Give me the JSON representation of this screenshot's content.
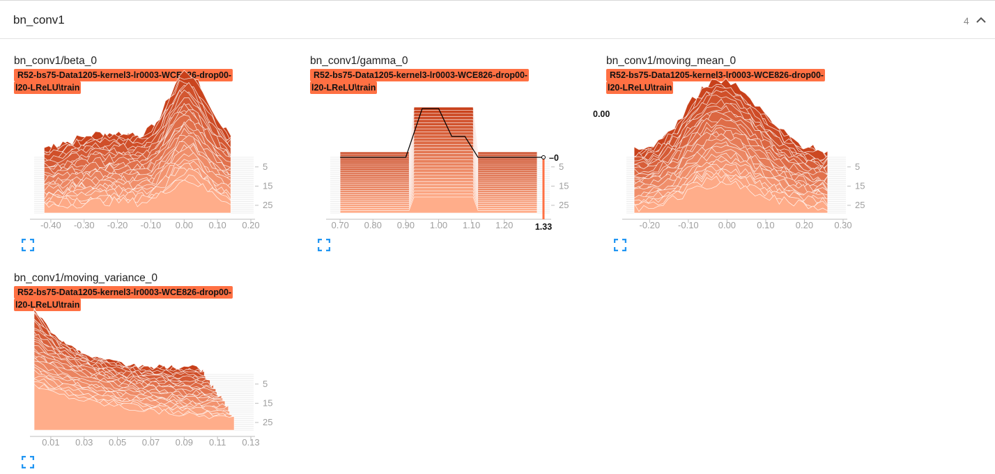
{
  "section": {
    "title": "bn_conv1",
    "count": "4"
  },
  "icons": {
    "collapse": "chevron-up-icon",
    "expand": "fullscreen-icon"
  },
  "colors": {
    "run": "#ff7043",
    "hist_dark": "#c8401a",
    "hist_light": "#ffad8a"
  },
  "chart_data": [
    {
      "type": "area",
      "title": "bn_conv1/beta_0",
      "run": [
        "R52-bs75-Data1205-kernel3-lr0003-WCE826-drop00-",
        "l20-LReLU\\train"
      ],
      "xlim": [
        -0.45,
        0.2
      ],
      "x_ticks": [
        "-0.40",
        "-0.30",
        "-0.20",
        "-0.10",
        "0.00",
        "0.10",
        "0.20"
      ],
      "y_ticks": [
        "5",
        "15",
        "25"
      ],
      "steps": 30,
      "shape": {
        "centers": [
          -0.22,
          0.0,
          0.06
        ],
        "widths": [
          0.12,
          0.05,
          0.08
        ],
        "amps": [
          0.35,
          1.0,
          0.5
        ],
        "left": -0.42,
        "right": 0.14
      }
    },
    {
      "type": "area",
      "title": "bn_conv1/gamma_0",
      "run": [
        "R52-bs75-Data1205-kernel3-lr0003-WCE826-drop00-",
        "l20-LReLU\\train"
      ],
      "xlim": [
        0.67,
        1.33
      ],
      "x_ticks": [
        "0.70",
        "0.80",
        "0.90",
        "1.00",
        "1.10",
        "1.20"
      ],
      "y_ticks": [
        "5",
        "15",
        "25"
      ],
      "steps": 30,
      "hover": {
        "x": "1.33",
        "step": "0"
      },
      "shape": {
        "plateau": [
          0.92,
          1.12
        ],
        "left": 0.7,
        "right": 1.3
      }
    },
    {
      "type": "area",
      "title": "bn_conv1/moving_mean_0",
      "run": [
        "R52-bs75-Data1205-kernel3-lr0003-WCE826-drop00-",
        "l20-LReLU\\train"
      ],
      "xlim": [
        -0.26,
        0.3
      ],
      "x_ticks": [
        "-0.20",
        "-0.10",
        "0.00",
        "0.10",
        "0.20",
        "0.30"
      ],
      "y_ticks": [
        "5",
        "15",
        "25"
      ],
      "steps": 30,
      "value_label": "0.00",
      "shape": {
        "centers": [
          -0.05,
          0.05
        ],
        "widths": [
          0.07,
          0.08
        ],
        "amps": [
          0.9,
          0.7
        ],
        "left": -0.24,
        "right": 0.26
      }
    },
    {
      "type": "area",
      "title": "bn_conv1/moving_variance_0",
      "run": [
        "R52-bs75-Data1205-kernel3-lr0003-WCE826-drop00-",
        "l20-LReLU\\train"
      ],
      "xlim": [
        0.0,
        0.13
      ],
      "x_ticks": [
        "0.01",
        "0.03",
        "0.05",
        "0.07",
        "0.09",
        "0.11",
        "0.13"
      ],
      "y_ticks": [
        "5",
        "15",
        "25"
      ],
      "steps": 30,
      "shape": {
        "decay": true,
        "left": 0.0,
        "right": 0.12
      }
    }
  ]
}
